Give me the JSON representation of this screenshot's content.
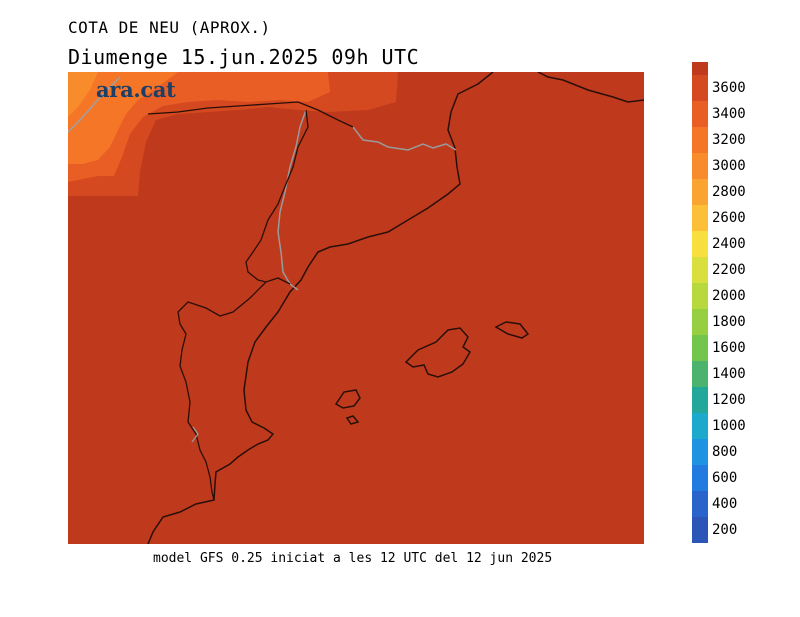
{
  "title": "COTA DE NEU (APROX.)",
  "date_line": "Diumenge  15.jun.2025 09h UTC",
  "logo_text": "ara.cat",
  "footer": "model GFS 0.25 iniciat a les 12 UTC del 12 jun 2025",
  "colorbar": {
    "labels": [
      "3600",
      "3400",
      "3200",
      "3000",
      "2800",
      "2600",
      "2400",
      "2200",
      "2000",
      "1800",
      "1600",
      "1400",
      "1200",
      "1000",
      "800",
      "600",
      "400",
      "200"
    ],
    "colors": [
      "#bf3a1c",
      "#d4491f",
      "#e85e24",
      "#f57627",
      "#f88c2b",
      "#f9a431",
      "#fbbf38",
      "#f8de3e",
      "#d9df3f",
      "#b7d93e",
      "#96cf42",
      "#73c54b",
      "#4cb36e",
      "#23a79a",
      "#1ca9cb",
      "#1f93e0",
      "#237be0",
      "#2a63c9",
      "#2c55b8"
    ]
  },
  "colors": {
    "map_base": "#bf3a1c",
    "logo": "#1b3f66",
    "coastline": "#2a0f08",
    "borders": "#9a9a9a"
  }
}
